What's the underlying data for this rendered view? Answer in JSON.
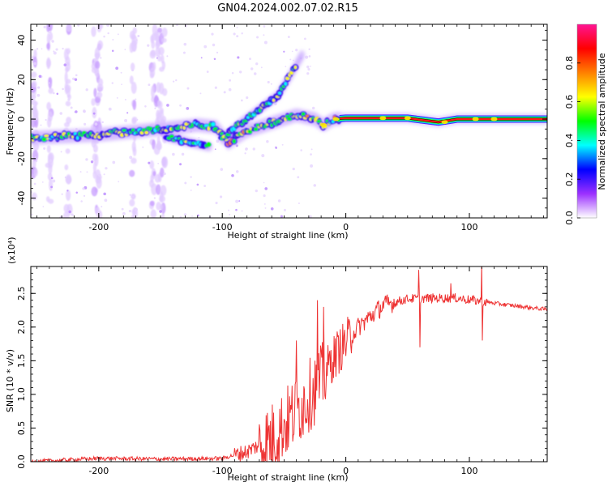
{
  "title": "GN04.2024.002.07.02.R15",
  "chart_data": [
    {
      "type": "heatmap",
      "xlabel": "Height of straight line (km)",
      "ylabel": "Frequency (Hz)",
      "xlim": [
        -255,
        163
      ],
      "ylim": [
        -50,
        48
      ],
      "xticks": [
        -200,
        -100,
        0,
        100
      ],
      "yticks": [
        -40,
        -20,
        0,
        20,
        40
      ],
      "colorbar": {
        "label": "Normalized spectral amplitude",
        "range": [
          0,
          1
        ],
        "ticks": [
          "0.0",
          "0.2",
          "0.4",
          "0.6",
          "0.8"
        ],
        "colormap": [
          "#ffffff",
          "#9b30ff",
          "#0000ff",
          "#00ffff",
          "#00ff00",
          "#ffff00",
          "#ff8000",
          "#ff0000",
          "#ff1493"
        ]
      },
      "main_track": [
        {
          "x": -255,
          "y": -9.5
        },
        {
          "x": -200,
          "y": -8
        },
        {
          "x": -150,
          "y": -5
        },
        {
          "x": -120,
          "y": -3
        },
        {
          "x": -105,
          "y": -4
        },
        {
          "x": -95,
          "y": -12
        },
        {
          "x": -80,
          "y": -6
        },
        {
          "x": -60,
          "y": -2
        },
        {
          "x": -40,
          "y": 2
        },
        {
          "x": -25,
          "y": 0
        },
        {
          "x": -18,
          "y": -3
        },
        {
          "x": -10,
          "y": 0
        },
        {
          "x": 0,
          "y": 0.5
        },
        {
          "x": 50,
          "y": 0.5
        },
        {
          "x": 75,
          "y": -1.5
        },
        {
          "x": 90,
          "y": 0
        },
        {
          "x": 163,
          "y": 0
        }
      ],
      "upper_branch": [
        {
          "x": -100,
          "y": -10
        },
        {
          "x": -85,
          "y": -2
        },
        {
          "x": -70,
          "y": 5
        },
        {
          "x": -55,
          "y": 12
        },
        {
          "x": -45,
          "y": 22
        },
        {
          "x": -35,
          "y": 33
        }
      ],
      "lower_branch": [
        {
          "x": -145,
          "y": -9
        },
        {
          "x": -125,
          "y": -12
        },
        {
          "x": -110,
          "y": -14
        }
      ]
    },
    {
      "type": "line",
      "xlabel": "Height of straight line (km)",
      "ylabel": "SNR (10 * v/v)",
      "y_multiplier": "(x10⁴)",
      "xlim": [
        -255,
        163
      ],
      "ylim": [
        0,
        2.9
      ],
      "xticks": [
        -200,
        -100,
        0,
        100
      ],
      "yticks": [
        "0.0",
        "0.5",
        "1.0",
        "1.5",
        "2.0",
        "2.5"
      ],
      "color": "#ee3333",
      "x": [
        -255,
        -200,
        -150,
        -100,
        -80,
        -60,
        -40,
        -20,
        -10,
        10,
        30,
        50,
        70,
        90,
        110,
        130,
        163
      ],
      "y": [
        0.0,
        0.05,
        0.04,
        0.05,
        0.15,
        0.35,
        0.75,
        1.2,
        1.55,
        2.0,
        2.32,
        2.42,
        2.43,
        2.43,
        2.38,
        2.33,
        2.26
      ],
      "spikes": [
        {
          "x": -40,
          "y": 1.8
        },
        {
          "x": -23,
          "y": 2.4
        },
        {
          "x": -18,
          "y": 2.3
        },
        {
          "x": 59,
          "y": 2.85
        },
        {
          "x": 60,
          "y": 1.7
        },
        {
          "x": 85,
          "y": 2.65
        },
        {
          "x": 110,
          "y": 2.95
        },
        {
          "x": 110.5,
          "y": 1.8
        }
      ]
    }
  ]
}
